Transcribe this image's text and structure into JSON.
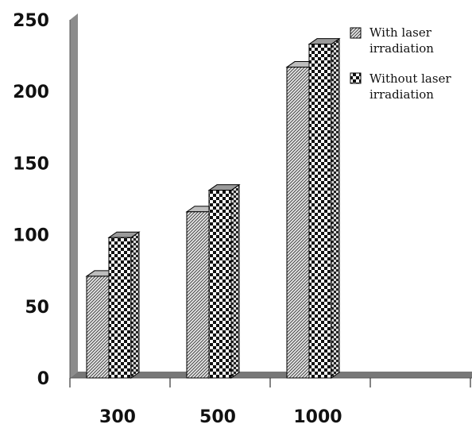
{
  "chart_data": {
    "type": "bar",
    "title": "",
    "xlabel": "",
    "ylabel": "",
    "categories": [
      "300",
      "500",
      "1000"
    ],
    "series": [
      {
        "name": "With laser irradiation",
        "values": [
          71,
          116,
          217
        ],
        "pattern": "diagonal-hatch"
      },
      {
        "name": "Without laser irradiation",
        "values": [
          98,
          131,
          233
        ],
        "pattern": "checkerboard"
      }
    ],
    "ylim": [
      0,
      250
    ],
    "yticks": [
      "0",
      "50",
      "100",
      "150",
      "200",
      "250"
    ],
    "grid": false,
    "legend_position": "top-right",
    "style": "3d-bars",
    "colors": {
      "wall": "#8c8c8c",
      "floor": "#777777",
      "bar_edge": "#000000"
    }
  },
  "legend": {
    "items": [
      {
        "line1": "With laser",
        "line2": "irradiation"
      },
      {
        "line1": "Without laser",
        "line2": "irradiation"
      }
    ]
  }
}
